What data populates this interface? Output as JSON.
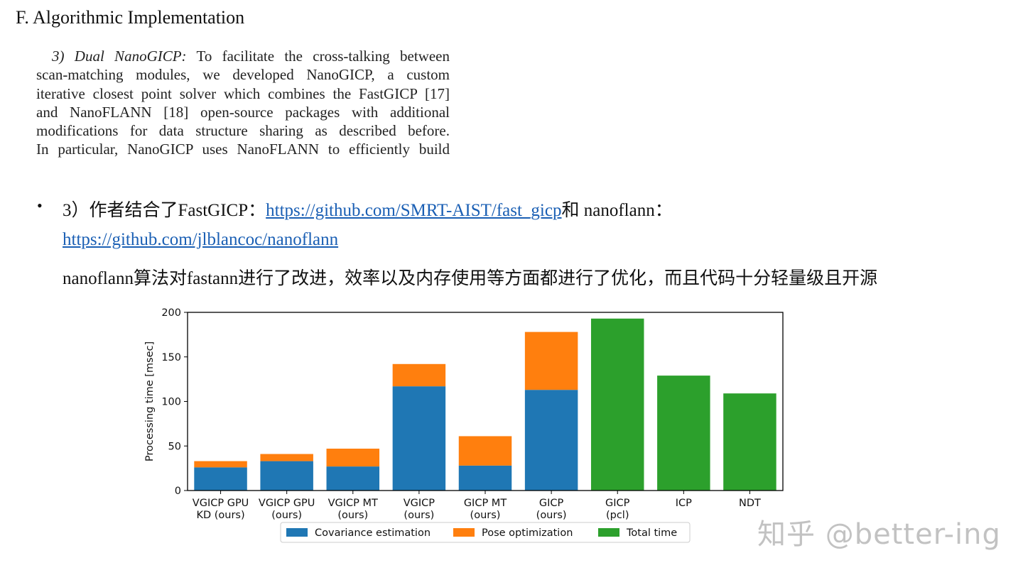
{
  "section_heading": "F. Algorithmic Implementation",
  "excerpt": {
    "subsection": "3) Dual NanoGICP:",
    "lines": [
      "To facilitate the cross-talking between",
      "scan-matching modules, we developed NanoGICP, a custom",
      "iterative closest point solver which combines the FastGICP [17]",
      "and NanoFLANN [18] open-source packages with additional",
      "modifications for data structure sharing as described before.",
      "In particular, NanoGICP uses NanoFLANN to efficiently build"
    ]
  },
  "note": {
    "bullet": "•",
    "prefix": "3）作者结合了FastGICP：",
    "link1": "https://github.com/SMRT-AIST/fast_gicp",
    "middle": "和 nanoflann：",
    "link2": "https://github.com/jlblancoc/nanoflann",
    "summary": "nanoflann算法对fastann进行了改进，效率以及内存使用等方面都进行了优化，而且代码十分轻量级且开源"
  },
  "chart_data": {
    "type": "bar",
    "stacked": true,
    "categories": [
      [
        "VGICP GPU",
        "KD (ours)"
      ],
      [
        "VGICP GPU",
        "(ours)"
      ],
      [
        "VGICP MT",
        "(ours)"
      ],
      [
        "VGICP",
        "(ours)"
      ],
      [
        "GICP MT",
        "(ours)"
      ],
      [
        "GICP",
        "(ours)"
      ],
      [
        "GICP",
        "(pcl)"
      ],
      [
        "ICP"
      ],
      [
        "NDT"
      ]
    ],
    "series": [
      {
        "name": "Covariance estimation",
        "color": "#1f77b4",
        "values": [
          26,
          33,
          27,
          117,
          28,
          113,
          0,
          0,
          0
        ]
      },
      {
        "name": "Pose optimization",
        "color": "#ff7f0e",
        "values": [
          7,
          8,
          20,
          25,
          33,
          65,
          0,
          0,
          0
        ]
      },
      {
        "name": "Total time",
        "color": "#2ca02c",
        "values": [
          0,
          0,
          0,
          0,
          0,
          0,
          193,
          129,
          109
        ]
      }
    ],
    "ylabel": "Processing time [msec]",
    "ylim": [
      0,
      200
    ],
    "yticks": [
      0,
      50,
      100,
      150,
      200
    ],
    "legend_position": "bottom-center",
    "grid": false
  },
  "watermark": "知乎 @better-ing"
}
